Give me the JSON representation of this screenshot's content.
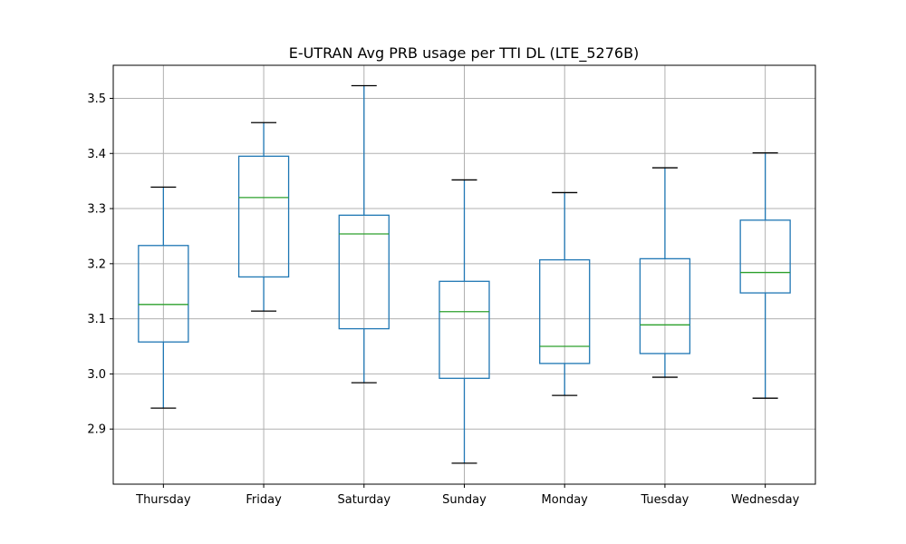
{
  "chart_data": {
    "type": "box",
    "title": "E-UTRAN Avg PRB usage per TTI DL (LTE_5276B)",
    "xlabel": "",
    "ylabel": "",
    "ylim": [
      2.8,
      3.56
    ],
    "yticks": [
      2.9,
      3.0,
      3.1,
      3.2,
      3.3,
      3.4,
      3.5
    ],
    "ytick_labels": [
      "2.9",
      "3.0",
      "3.1",
      "3.2",
      "3.3",
      "3.4",
      "3.5"
    ],
    "grid": true,
    "colors": {
      "box": "#1f77b4",
      "median": "#2ca02c",
      "cap": "#000000",
      "grid": "#b0b0b0"
    },
    "categories": [
      "Thursday",
      "Friday",
      "Saturday",
      "Sunday",
      "Monday",
      "Tuesday",
      "Wednesday"
    ],
    "boxes": [
      {
        "category": "Thursday",
        "whisker_low": 2.938,
        "q1": 3.058,
        "median": 3.126,
        "q3": 3.233,
        "whisker_high": 3.339
      },
      {
        "category": "Friday",
        "whisker_low": 3.114,
        "q1": 3.176,
        "median": 3.32,
        "q3": 3.395,
        "whisker_high": 3.456
      },
      {
        "category": "Saturday",
        "whisker_low": 2.984,
        "q1": 3.082,
        "median": 3.254,
        "q3": 3.288,
        "whisker_high": 3.523
      },
      {
        "category": "Sunday",
        "whisker_low": 2.838,
        "q1": 2.992,
        "median": 3.113,
        "q3": 3.168,
        "whisker_high": 3.352
      },
      {
        "category": "Monday",
        "whisker_low": 2.961,
        "q1": 3.019,
        "median": 3.05,
        "q3": 3.207,
        "whisker_high": 3.329
      },
      {
        "category": "Tuesday",
        "whisker_low": 2.994,
        "q1": 3.037,
        "median": 3.089,
        "q3": 3.209,
        "whisker_high": 3.374
      },
      {
        "category": "Wednesday",
        "whisker_low": 2.956,
        "q1": 3.147,
        "median": 3.184,
        "q3": 3.279,
        "whisker_high": 3.401
      }
    ]
  }
}
